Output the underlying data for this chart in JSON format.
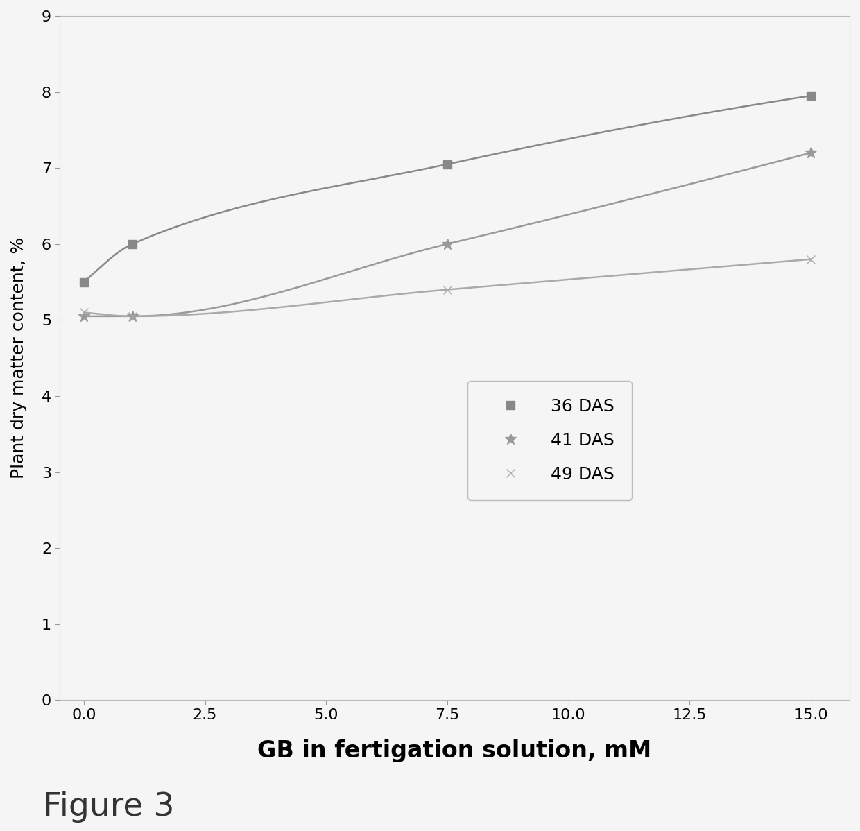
{
  "x_data": [
    0,
    1,
    7.5,
    15
  ],
  "series": [
    {
      "label": "36 DAS",
      "y_values": [
        5.5,
        6.0,
        7.05,
        7.95
      ],
      "color": "#888888",
      "marker": "s",
      "linewidth": 1.8,
      "markersize": 9
    },
    {
      "label": "41 DAS",
      "y_values": [
        5.05,
        5.05,
        6.0,
        7.2
      ],
      "color": "#999999",
      "marker": "*",
      "linewidth": 1.8,
      "markersize": 12
    },
    {
      "label": "49 DAS",
      "y_values": [
        5.1,
        5.05,
        5.4,
        5.8
      ],
      "color": "#aaaaaa",
      "marker": "x",
      "linewidth": 1.8,
      "markersize": 9
    }
  ],
  "xlabel": "GB in fertigation solution, mM",
  "ylabel": "Plant dry matter content, %",
  "xlim": [
    -0.5,
    15.8
  ],
  "ylim": [
    0,
    9
  ],
  "xticks": [
    0,
    2.5,
    5,
    7.5,
    10,
    12.5,
    15
  ],
  "yticks": [
    0,
    1,
    2,
    3,
    4,
    5,
    6,
    7,
    8,
    9
  ],
  "figure_label": "Figure 3",
  "background_color": "#f5f5f5",
  "grid_color": "#cccccc"
}
